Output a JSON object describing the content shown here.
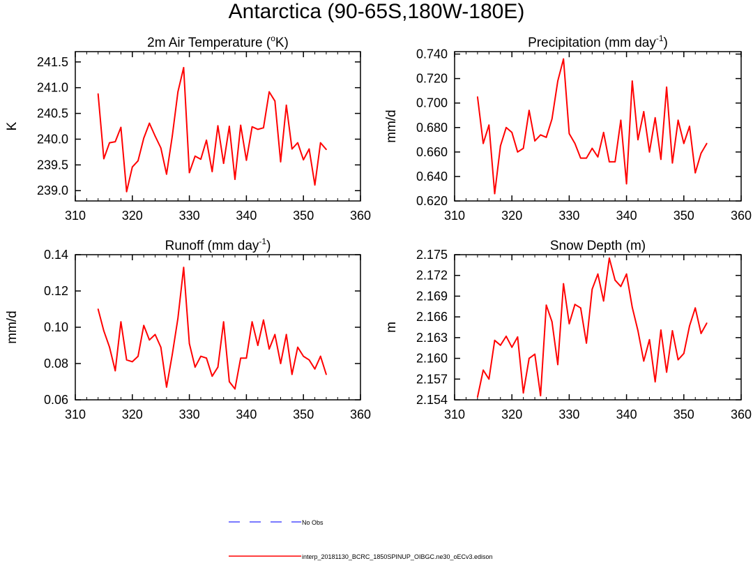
{
  "title": "Antarctica (90-65S,180W-180E)",
  "colors": {
    "model": "#ff0000",
    "obs": "#4d4dff",
    "axis": "#000000"
  },
  "legend": {
    "items": [
      {
        "label": "No Obs",
        "style": "dashed",
        "color": "#4d4dff"
      },
      {
        "label": "interp_20181130_BCRC_1850SPINUP_OIBGC.ne30_oECv3.edison",
        "style": "solid",
        "color": "#ff0000"
      }
    ]
  },
  "chart_data": [
    {
      "type": "line",
      "title": "2m Air Temperature (",
      "title_sup": "o",
      "title_tail": "K)",
      "xlabel": "",
      "ylabel": "K",
      "xlim": [
        310,
        360
      ],
      "ylim": [
        238.8,
        241.7
      ],
      "xticks": [
        310,
        320,
        330,
        340,
        350,
        360
      ],
      "yticks": [
        239.0,
        239.5,
        240.0,
        240.5,
        241.0,
        241.5
      ],
      "ytick_labels": [
        "239.0",
        "239.5",
        "240.0",
        "240.5",
        "241.0",
        "241.5"
      ],
      "series": [
        {
          "name": "interp_20181130_BCRC_1850SPINUP_OIBGC.ne30_oECv3.edison",
          "x": [
            314,
            315,
            316,
            317,
            318,
            319,
            320,
            321,
            322,
            323,
            324,
            325,
            326,
            327,
            328,
            329,
            330,
            331,
            332,
            333,
            334,
            335,
            336,
            337,
            338,
            339,
            340,
            341,
            342,
            343,
            344,
            345,
            346,
            347,
            348,
            349,
            350,
            351,
            352,
            353,
            354
          ],
          "values": [
            240.88,
            239.62,
            239.93,
            239.95,
            240.23,
            238.98,
            239.46,
            239.58,
            240.02,
            240.31,
            240.06,
            239.83,
            239.32,
            240.06,
            240.92,
            241.39,
            239.35,
            239.67,
            239.61,
            239.98,
            239.37,
            240.26,
            239.53,
            240.25,
            239.22,
            240.27,
            239.59,
            240.24,
            240.19,
            240.22,
            240.92,
            240.74,
            239.56,
            240.66,
            239.81,
            239.93,
            239.6,
            239.81,
            239.11,
            239.93,
            239.8
          ]
        }
      ]
    },
    {
      "type": "line",
      "title": "Precipitation (mm day",
      "title_sup": "-1",
      "title_tail": ")",
      "xlabel": "",
      "ylabel": "mm/d",
      "xlim": [
        310,
        360
      ],
      "ylim": [
        0.62,
        0.742
      ],
      "xticks": [
        310,
        320,
        330,
        340,
        350,
        360
      ],
      "yticks": [
        0.62,
        0.64,
        0.66,
        0.68,
        0.7,
        0.72,
        0.74
      ],
      "ytick_labels": [
        "0.620",
        "0.640",
        "0.660",
        "0.680",
        "0.700",
        "0.720",
        "0.740"
      ],
      "series": [
        {
          "name": "interp_20181130_BCRC_1850SPINUP_OIBGC.ne30_oECv3.edison",
          "x": [
            314,
            315,
            316,
            317,
            318,
            319,
            320,
            321,
            322,
            323,
            324,
            325,
            326,
            327,
            328,
            329,
            330,
            331,
            332,
            333,
            334,
            335,
            336,
            337,
            338,
            339,
            340,
            341,
            342,
            343,
            344,
            345,
            346,
            347,
            348,
            349,
            350,
            351,
            352,
            353,
            354
          ],
          "values": [
            0.705,
            0.667,
            0.682,
            0.626,
            0.665,
            0.68,
            0.676,
            0.66,
            0.663,
            0.694,
            0.669,
            0.674,
            0.672,
            0.687,
            0.718,
            0.736,
            0.675,
            0.667,
            0.655,
            0.655,
            0.663,
            0.656,
            0.676,
            0.652,
            0.652,
            0.686,
            0.634,
            0.718,
            0.67,
            0.693,
            0.66,
            0.688,
            0.654,
            0.713,
            0.651,
            0.686,
            0.667,
            0.681,
            0.643,
            0.659,
            0.667
          ]
        }
      ]
    },
    {
      "type": "line",
      "title": "Runoff (mm day",
      "title_sup": "-1",
      "title_tail": ")",
      "xlabel": "",
      "ylabel": "mm/d",
      "xlim": [
        310,
        360
      ],
      "ylim": [
        0.06,
        0.14
      ],
      "xticks": [
        310,
        320,
        330,
        340,
        350,
        360
      ],
      "yticks": [
        0.06,
        0.08,
        0.1,
        0.12,
        0.14
      ],
      "ytick_labels": [
        "0.06",
        "0.08",
        "0.10",
        "0.12",
        "0.14"
      ],
      "series": [
        {
          "name": "interp_20181130_BCRC_1850SPINUP_OIBGC.ne30_oECv3.edison",
          "x": [
            314,
            315,
            316,
            317,
            318,
            319,
            320,
            321,
            322,
            323,
            324,
            325,
            326,
            327,
            328,
            329,
            330,
            331,
            332,
            333,
            334,
            335,
            336,
            337,
            338,
            339,
            340,
            341,
            342,
            343,
            344,
            345,
            346,
            347,
            348,
            349,
            350,
            351,
            352,
            353,
            354
          ],
          "values": [
            0.11,
            0.098,
            0.089,
            0.076,
            0.103,
            0.082,
            0.081,
            0.084,
            0.101,
            0.093,
            0.096,
            0.089,
            0.067,
            0.085,
            0.105,
            0.133,
            0.091,
            0.078,
            0.084,
            0.083,
            0.073,
            0.078,
            0.103,
            0.07,
            0.066,
            0.083,
            0.083,
            0.103,
            0.09,
            0.104,
            0.088,
            0.096,
            0.08,
            0.096,
            0.074,
            0.089,
            0.084,
            0.082,
            0.077,
            0.084,
            0.074
          ]
        }
      ]
    },
    {
      "type": "line",
      "title": "Snow Depth (m)",
      "title_sup": "",
      "title_tail": "",
      "xlabel": "",
      "ylabel": "m",
      "xlim": [
        310,
        360
      ],
      "ylim": [
        2.154,
        2.175
      ],
      "xticks": [
        310,
        320,
        330,
        340,
        350,
        360
      ],
      "yticks": [
        2.154,
        2.157,
        2.16,
        2.163,
        2.166,
        2.169,
        2.172,
        2.175
      ],
      "ytick_labels": [
        "2.154",
        "2.157",
        "2.160",
        "2.163",
        "2.166",
        "2.169",
        "2.172",
        "2.175"
      ],
      "series": [
        {
          "name": "interp_20181130_BCRC_1850SPINUP_OIBGC.ne30_oECv3.edison",
          "x": [
            314,
            315,
            316,
            317,
            318,
            319,
            320,
            321,
            322,
            323,
            324,
            325,
            326,
            327,
            328,
            329,
            330,
            331,
            332,
            333,
            334,
            335,
            336,
            337,
            338,
            339,
            340,
            341,
            342,
            343,
            344,
            345,
            346,
            347,
            348,
            349,
            350,
            351,
            352,
            353,
            354
          ],
          "values": [
            2.1544,
            2.1583,
            2.157,
            2.1626,
            2.1619,
            2.1632,
            2.1616,
            2.1631,
            2.155,
            2.16,
            2.1606,
            2.1546,
            2.1677,
            2.1653,
            2.1591,
            2.1708,
            2.165,
            2.1678,
            2.1673,
            2.1622,
            2.17,
            2.1722,
            2.1683,
            2.1745,
            2.1713,
            2.1704,
            2.1722,
            2.1674,
            2.164,
            2.1596,
            2.1627,
            2.1566,
            2.1641,
            2.158,
            2.164,
            2.1598,
            2.1607,
            2.1647,
            2.1673,
            2.1636,
            2.1651
          ]
        }
      ]
    }
  ]
}
